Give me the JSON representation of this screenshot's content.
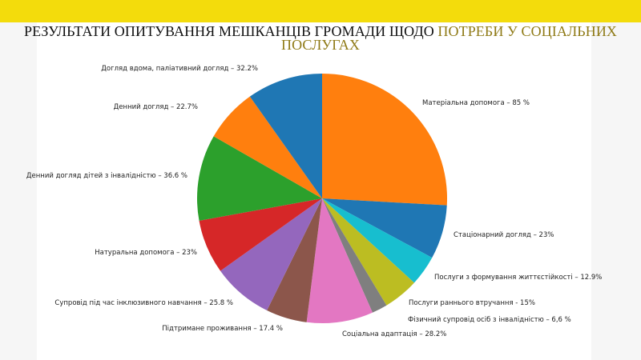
{
  "title": {
    "dark": "РЕЗУЛЬТАТИ ОПИТУВАННЯ МЕШКАНЦІВ ГРОМАДИ ЩОДО ",
    "gold": "ПОТРЕБИ У СОЦІАЛЬНИХ ПОСЛУГАХ"
  },
  "colors": {
    "top_band": "#f3dc0c",
    "title_gold": "#8f7a16"
  },
  "chart_data": {
    "type": "pie",
    "title": "РЕЗУЛЬТАТИ ОПИТУВАННЯ МЕШКАНЦІВ ГРОМАДИ ЩОДО ПОТРЕБИ У СОЦІАЛЬНИХ ПОСЛУГАХ",
    "start_angle_deg": 90,
    "direction": "clockwise",
    "slices": [
      {
        "label": "Матеріальна допомога – 85 %",
        "value": 85,
        "color": "#ff7f0e"
      },
      {
        "label": "Стаціонарний догляд – 23%",
        "value": 23,
        "color": "#1f77b4"
      },
      {
        "label": "Послуги з формування життєстійкості – 12.9%",
        "value": 12.9,
        "color": "#17becf"
      },
      {
        "label": "Послуги раннього втручання  - 15%",
        "value": 15,
        "color": "#bcbd22"
      },
      {
        "label": "Фізичний супровід осіб з інвалідністю – 6,6 %",
        "value": 6.6,
        "color": "#7f7f7f"
      },
      {
        "label": "Соціальна адаптація – 28.2%",
        "value": 28.2,
        "color": "#e377c2"
      },
      {
        "label": "Підтримане проживання – 17.4 %",
        "value": 17.4,
        "color": "#8c564b"
      },
      {
        "label": "Супровід під час інклюзивного навчання – 25.8 %",
        "value": 25.8,
        "color": "#9467bd"
      },
      {
        "label": "Натуральна допомога – 23%",
        "value": 23,
        "color": "#d62728"
      },
      {
        "label": "Денний догляд дітей з інвалідністю – 36.6 %",
        "value": 36.6,
        "color": "#2ca02c"
      },
      {
        "label": "Денний догляд – 22.7%",
        "value": 22.7,
        "color": "#ff7f0e"
      },
      {
        "label": "Догляд вдома, паліативний догляд – 32.2%",
        "value": 32.2,
        "color": "#1f77b4"
      }
    ]
  }
}
